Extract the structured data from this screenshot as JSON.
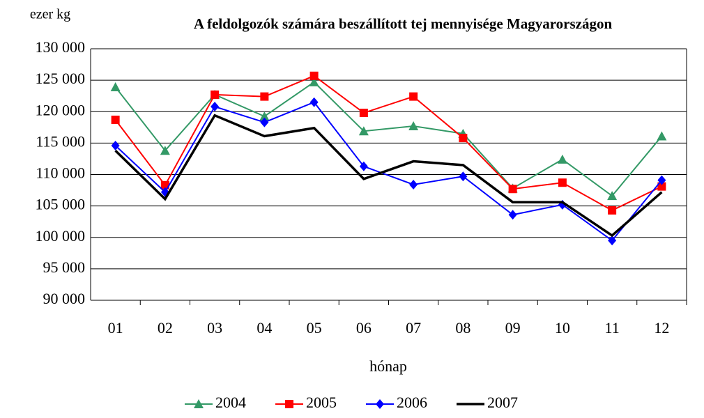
{
  "chart_data": {
    "type": "line",
    "title": "A feldolgozók számára beszállított tej mennyisége Magyarországon",
    "y_label": "ezer kg",
    "x_label": "hónap",
    "categories": [
      "01",
      "02",
      "03",
      "04",
      "05",
      "06",
      "07",
      "08",
      "09",
      "10",
      "11",
      "12"
    ],
    "series": [
      {
        "name": "2004",
        "color": "#339966",
        "marker": "triangle",
        "values": [
          123900,
          113800,
          122700,
          119250,
          124700,
          116900,
          117700,
          116500,
          107800,
          112400,
          106600,
          116100
        ]
      },
      {
        "name": "2005",
        "color": "#ff0000",
        "marker": "square",
        "values": [
          118700,
          108300,
          122700,
          122400,
          125700,
          119800,
          122400,
          115800,
          107700,
          108700,
          104300,
          108100
        ]
      },
      {
        "name": "2006",
        "color": "#0000ff",
        "marker": "diamond",
        "values": [
          114600,
          107200,
          120800,
          118300,
          121500,
          111300,
          108400,
          109700,
          103600,
          105200,
          99500,
          109100
        ]
      },
      {
        "name": "2007",
        "color": "#000000",
        "marker": "none",
        "values": [
          113800,
          106100,
          119400,
          116100,
          117400,
          109300,
          112100,
          111500,
          105600,
          105600,
          100300,
          107200
        ]
      }
    ],
    "ylim": [
      90000,
      130000
    ],
    "yticks": [
      {
        "value": 90000,
        "label": "90 000"
      },
      {
        "value": 95000,
        "label": "95 000"
      },
      {
        "value": 100000,
        "label": "100 000"
      },
      {
        "value": 105000,
        "label": "105 000"
      },
      {
        "value": 110000,
        "label": "110 000"
      },
      {
        "value": 115000,
        "label": "115 000"
      },
      {
        "value": 120000,
        "label": "120 000"
      },
      {
        "value": 125000,
        "label": "125 000"
      },
      {
        "value": 130000,
        "label": "130 000"
      }
    ],
    "grid": true,
    "legend": "bottom"
  }
}
